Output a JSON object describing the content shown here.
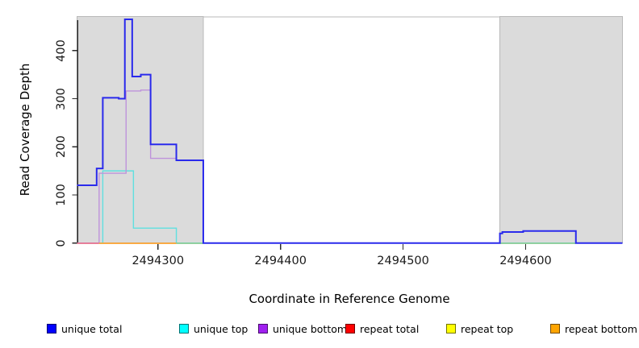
{
  "axes": {
    "xlabel": "Coordinate in Reference Genome",
    "ylabel": "Read Coverage Depth"
  },
  "chart_data": {
    "type": "line",
    "step": true,
    "grid": false,
    "x_range": [
      2494234,
      2494679
    ],
    "y_range": [
      0,
      471
    ],
    "x_ticks": [
      2494300,
      2494400,
      2494500,
      2494600
    ],
    "y_ticks": [
      0,
      100,
      200,
      300,
      400
    ],
    "shaded_regions": [
      {
        "name": "left-gray-block",
        "x0": 2494234,
        "x1": 2494337
      },
      {
        "name": "right-gray-block",
        "x0": 2494579,
        "x1": 2494679
      }
    ],
    "series": [
      {
        "name": "unique top",
        "color": "#5fe0e0",
        "width": 1.4,
        "z": 1,
        "points": [
          [
            2494234,
            0
          ],
          [
            2494255,
            150
          ],
          [
            2494280,
            31
          ],
          [
            2494315,
            0
          ]
        ]
      },
      {
        "name": "unique bottom",
        "color": "#be93db",
        "width": 1.4,
        "z": 2,
        "points": [
          [
            2494234,
            0
          ],
          [
            2494252,
            145
          ],
          [
            2494274,
            316
          ],
          [
            2494286,
            318
          ],
          [
            2494294,
            176
          ],
          [
            2494315,
            172
          ],
          [
            2494337,
            0
          ],
          [
            2494579,
            20
          ],
          [
            2494581,
            23
          ],
          [
            2494598,
            25
          ],
          [
            2494641,
            0
          ]
        ]
      },
      {
        "name": "unique total",
        "color": "#2a2aec",
        "width": 2,
        "z": 4,
        "points": [
          [
            2494234,
            120
          ],
          [
            2494250,
            155
          ],
          [
            2494255,
            302
          ],
          [
            2494268,
            300
          ],
          [
            2494273,
            465
          ],
          [
            2494279,
            346
          ],
          [
            2494286,
            350
          ],
          [
            2494294,
            205
          ],
          [
            2494315,
            172
          ],
          [
            2494337,
            0
          ],
          [
            2494579,
            20
          ],
          [
            2494581,
            23
          ],
          [
            2494598,
            25
          ],
          [
            2494641,
            0
          ]
        ]
      }
    ],
    "baseline_segments": [
      {
        "name": "repeat-total-visible",
        "color": "#e8708a",
        "x0": 2494234,
        "x1": 2494252,
        "value": 0,
        "z": 3
      },
      {
        "name": "repeat-bottom-visible",
        "color": "#ffa126",
        "x0": 2494252,
        "x1": 2494315,
        "value": 0,
        "z": 3
      },
      {
        "name": "green-baseline-left",
        "color": "#8cc98f",
        "x0": 2494315,
        "x1": 2494337,
        "value": 0,
        "z": 3
      },
      {
        "name": "green-baseline-right",
        "color": "#8cc98f",
        "x0": 2494579,
        "x1": 2494641,
        "value": 0,
        "z": 3
      }
    ]
  },
  "legend": {
    "items": [
      {
        "label": "unique total",
        "color": "#0000ff"
      },
      {
        "label": "unique top",
        "color": "#00ffff"
      },
      {
        "label": "unique bottom",
        "color": "#a020f0"
      },
      {
        "label": "repeat total",
        "color": "#ff0000"
      },
      {
        "label": "repeat top",
        "color": "#ffff00"
      },
      {
        "label": "repeat bottom",
        "color": "#ffa500"
      }
    ]
  },
  "colors": {
    "shade_fill": "#dbdbdb",
    "shade_border": "#b9b9b9",
    "axis": "#2b2b2b"
  }
}
